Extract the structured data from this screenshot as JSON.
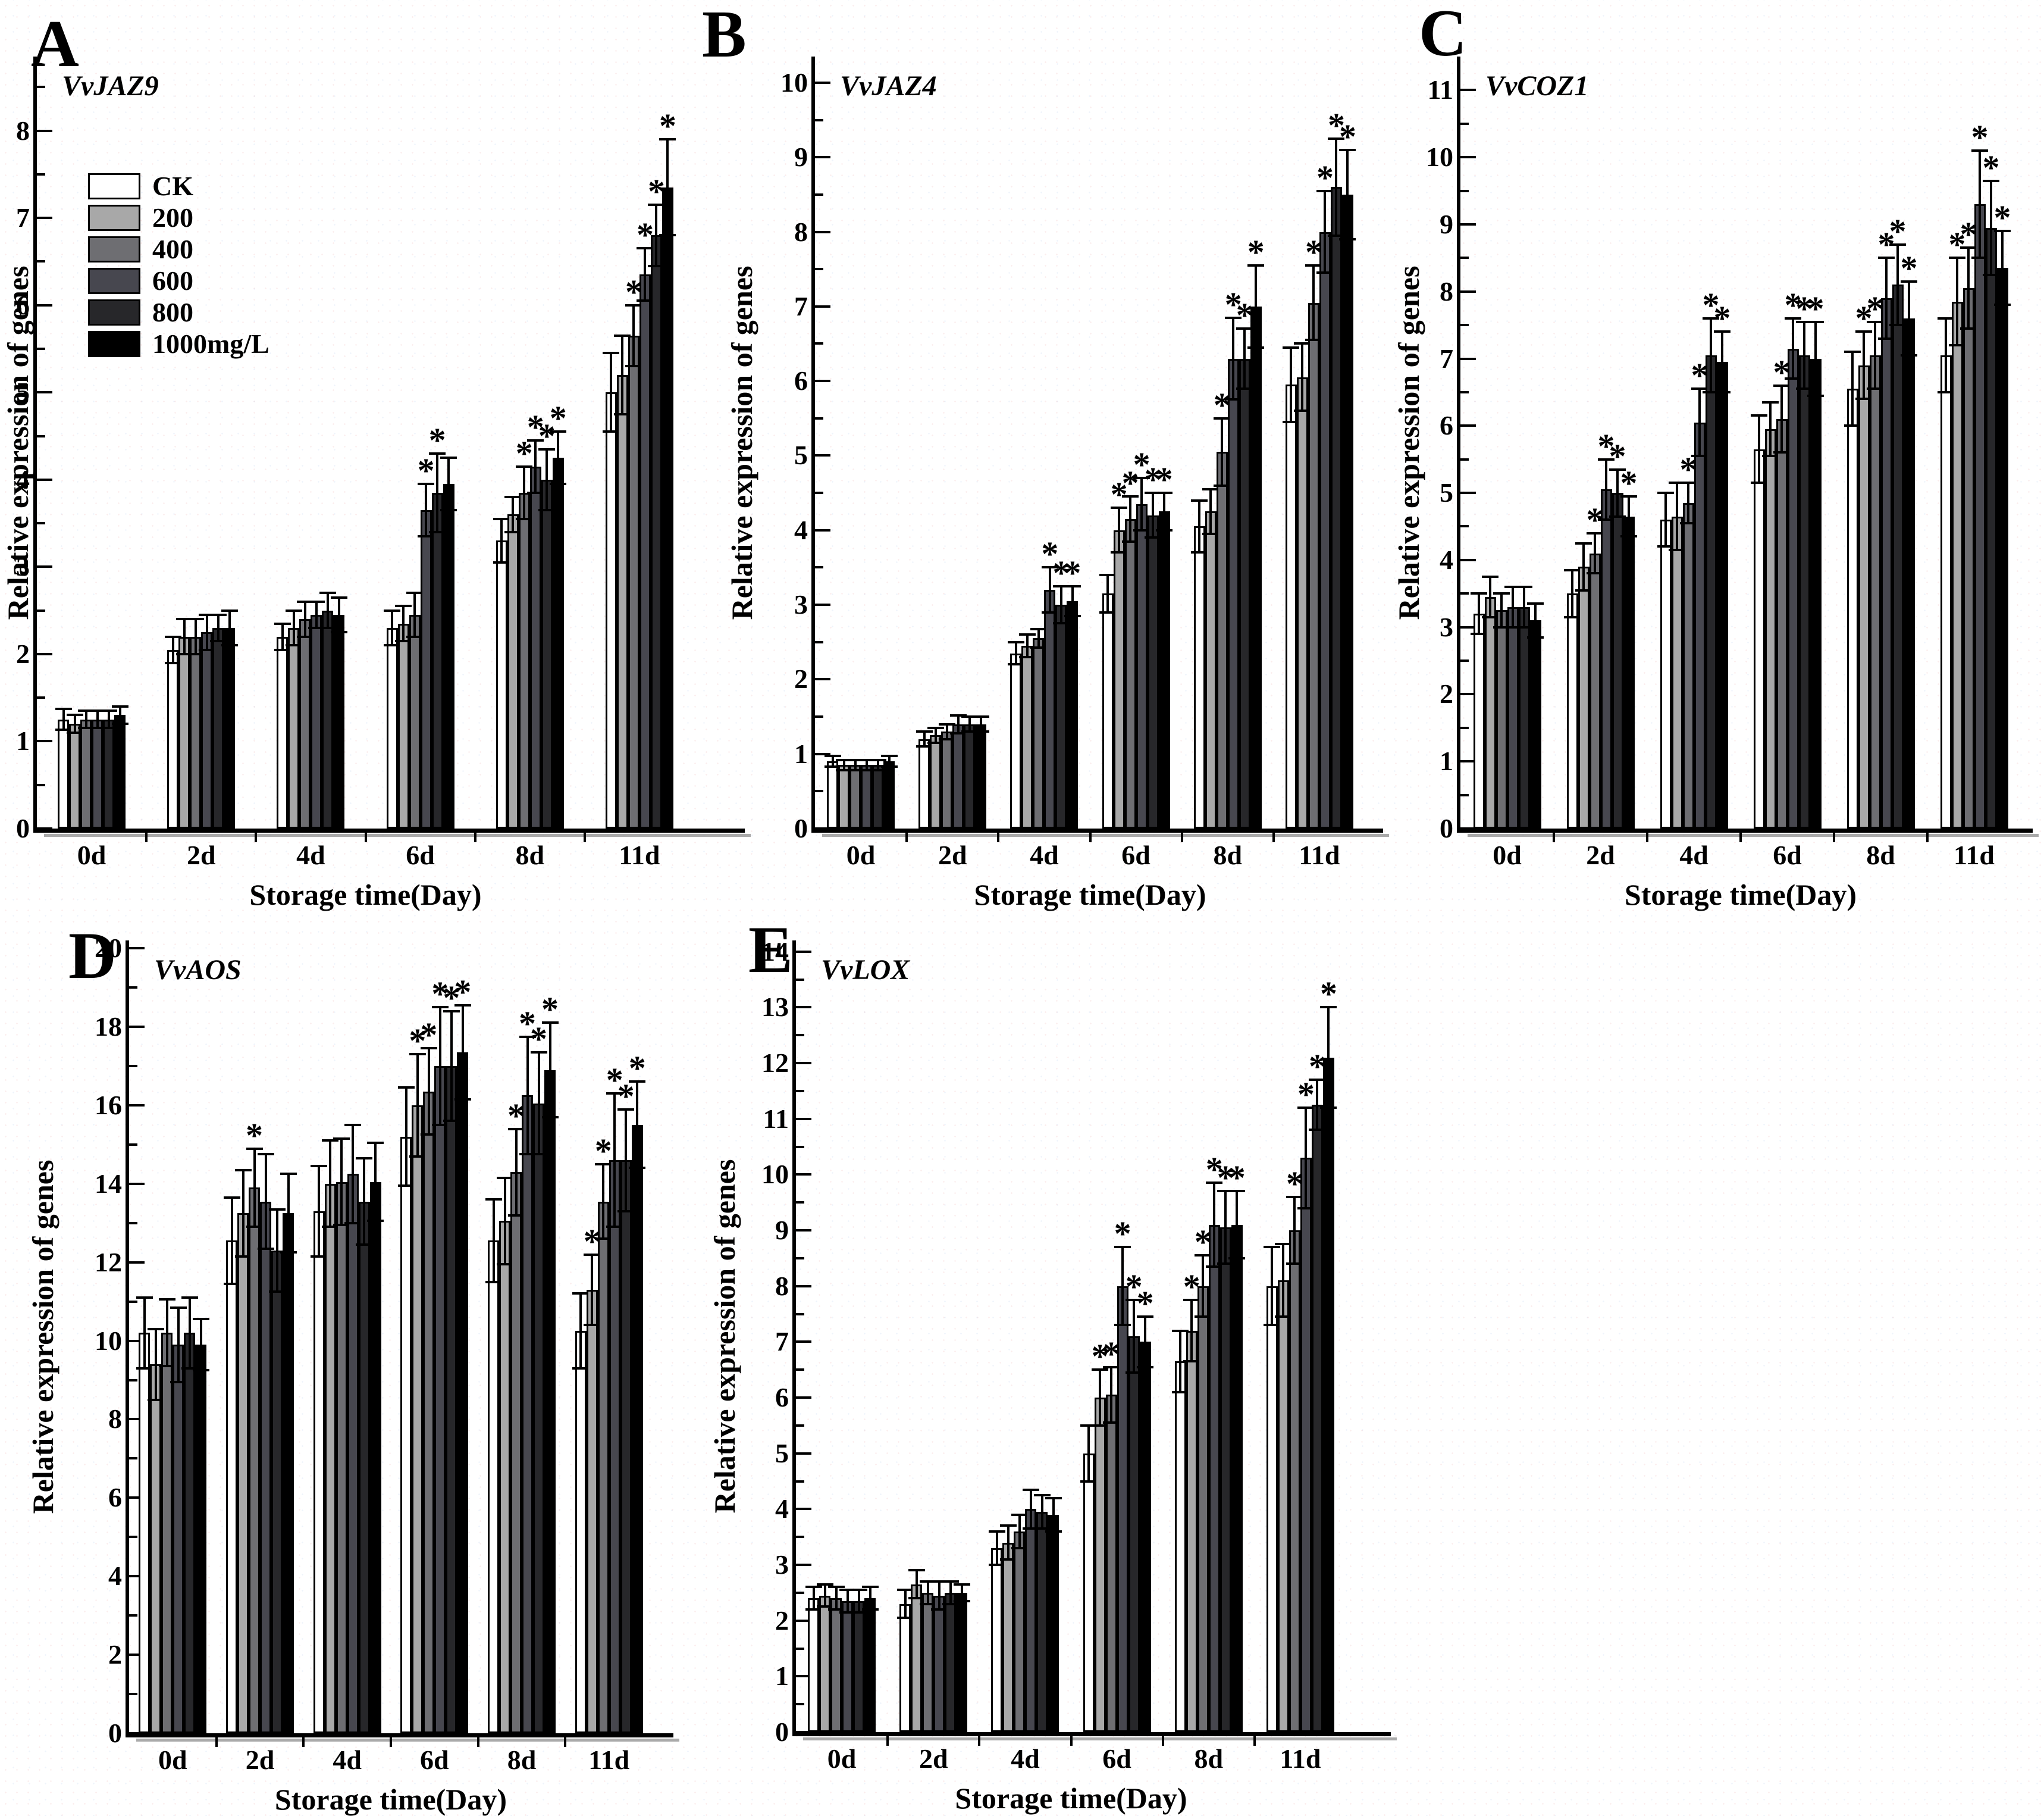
{
  "figure": {
    "panel_letters": [
      "A",
      "B",
      "C",
      "D",
      "E"
    ],
    "x_axis_title": "Storage time(Day)",
    "y_axis_title": "Relative expression of genes",
    "categories": [
      "0d",
      "2d",
      "4d",
      "6d",
      "8d",
      "11d"
    ],
    "significance_symbol": "*",
    "legend": {
      "labels": [
        "CK",
        "200",
        "400",
        "600",
        "800",
        "1000mg/L"
      ],
      "colors": [
        "#ffffff",
        "#a8a8a8",
        "#6e6e72",
        "#47474f",
        "#27272a",
        "#000000"
      ]
    }
  },
  "chart_data": [
    {
      "type": "bar",
      "panel": "A",
      "title": "VvJAZ9",
      "xlabel": "Storage time(Day)",
      "ylabel": "Relative expression of genes",
      "categories": [
        "0d",
        "2d",
        "4d",
        "6d",
        "8d",
        "11d"
      ],
      "ylim": [
        0,
        8
      ],
      "ytick_step": 1,
      "legend_position": "upper-left-inside",
      "grid": false,
      "series": [
        {
          "name": "CK",
          "color": "#ffffff",
          "values": [
            1.25,
            2.05,
            2.2,
            2.3,
            3.3,
            5.0
          ],
          "errors": [
            0.12,
            0.15,
            0.15,
            0.2,
            0.25,
            0.45
          ],
          "stars": [
            0,
            0,
            0,
            0,
            0,
            0
          ]
        },
        {
          "name": "200",
          "color": "#a8a8a8",
          "values": [
            1.2,
            2.2,
            2.3,
            2.35,
            3.6,
            5.2
          ],
          "errors": [
            0.1,
            0.2,
            0.2,
            0.2,
            0.2,
            0.45
          ],
          "stars": [
            0,
            0,
            0,
            0,
            0,
            0
          ]
        },
        {
          "name": "400",
          "color": "#6e6e72",
          "values": [
            1.25,
            2.2,
            2.4,
            2.45,
            3.85,
            5.65
          ],
          "errors": [
            0.1,
            0.2,
            0.2,
            0.25,
            0.3,
            0.35
          ],
          "stars": [
            0,
            0,
            0,
            0,
            1,
            1
          ]
        },
        {
          "name": "600",
          "color": "#47474f",
          "values": [
            1.25,
            2.25,
            2.45,
            3.65,
            4.15,
            6.35
          ],
          "errors": [
            0.1,
            0.2,
            0.15,
            0.3,
            0.3,
            0.3
          ],
          "stars": [
            0,
            0,
            0,
            1,
            1,
            1
          ]
        },
        {
          "name": "800",
          "color": "#27272a",
          "values": [
            1.25,
            2.3,
            2.5,
            3.85,
            4.0,
            6.8
          ],
          "errors": [
            0.1,
            0.15,
            0.2,
            0.45,
            0.35,
            0.35
          ],
          "stars": [
            0,
            0,
            0,
            1,
            1,
            1
          ]
        },
        {
          "name": "1000mg/L",
          "color": "#000000",
          "values": [
            1.3,
            2.3,
            2.45,
            3.95,
            4.25,
            7.35
          ],
          "errors": [
            0.1,
            0.2,
            0.2,
            0.3,
            0.3,
            0.55
          ],
          "stars": [
            0,
            0,
            0,
            0,
            1,
            1
          ]
        }
      ]
    },
    {
      "type": "bar",
      "panel": "B",
      "title": "VvJAZ4",
      "xlabel": "Storage time(Day)",
      "ylabel": "Relative expression of genes",
      "categories": [
        "0d",
        "2d",
        "4d",
        "6d",
        "8d",
        "11d"
      ],
      "ylim": [
        0,
        10
      ],
      "ytick_step": 1,
      "grid": false,
      "series": [
        {
          "name": "CK",
          "color": "#ffffff",
          "values": [
            0.9,
            1.2,
            2.35,
            3.15,
            4.05,
            5.95
          ],
          "errors": [
            0.07,
            0.1,
            0.15,
            0.25,
            0.35,
            0.5
          ],
          "stars": [
            0,
            0,
            0,
            0,
            0,
            0
          ]
        },
        {
          "name": "200",
          "color": "#a8a8a8",
          "values": [
            0.85,
            1.25,
            2.45,
            4.0,
            4.25,
            6.05
          ],
          "errors": [
            0.07,
            0.1,
            0.15,
            0.3,
            0.3,
            0.45
          ],
          "stars": [
            0,
            0,
            0,
            1,
            0,
            0
          ]
        },
        {
          "name": "400",
          "color": "#6e6e72",
          "values": [
            0.85,
            1.3,
            2.55,
            4.15,
            5.05,
            7.05
          ],
          "errors": [
            0.07,
            0.1,
            0.12,
            0.3,
            0.45,
            0.5
          ],
          "stars": [
            0,
            0,
            0,
            1,
            1,
            1
          ]
        },
        {
          "name": "600",
          "color": "#47474f",
          "values": [
            0.85,
            1.4,
            3.2,
            4.35,
            6.3,
            8.0
          ],
          "errors": [
            0.07,
            0.12,
            0.3,
            0.35,
            0.55,
            0.55
          ],
          "stars": [
            0,
            0,
            1,
            1,
            1,
            1
          ]
        },
        {
          "name": "800",
          "color": "#27272a",
          "values": [
            0.85,
            1.4,
            3.0,
            4.2,
            6.3,
            8.6
          ],
          "errors": [
            0.07,
            0.1,
            0.25,
            0.3,
            0.4,
            0.65
          ],
          "stars": [
            0,
            0,
            1,
            1,
            1,
            1
          ]
        },
        {
          "name": "1000mg/L",
          "color": "#000000",
          "values": [
            0.9,
            1.4,
            3.05,
            4.25,
            7.0,
            8.5
          ],
          "errors": [
            0.07,
            0.1,
            0.2,
            0.25,
            0.55,
            0.6
          ],
          "stars": [
            0,
            0,
            1,
            1,
            1,
            1
          ]
        }
      ]
    },
    {
      "type": "bar",
      "panel": "C",
      "title": "VvCOZ1",
      "xlabel": "Storage time(Day)",
      "ylabel": "Relative expression of genes",
      "categories": [
        "0d",
        "2d",
        "4d",
        "6d",
        "8d",
        "11d"
      ],
      "ylim": [
        0,
        11
      ],
      "ytick_step": 1,
      "grid": false,
      "series": [
        {
          "name": "CK",
          "color": "#ffffff",
          "values": [
            3.2,
            3.5,
            4.6,
            5.65,
            6.55,
            7.05
          ],
          "errors": [
            0.3,
            0.35,
            0.4,
            0.5,
            0.55,
            0.55
          ],
          "stars": [
            0,
            0,
            0,
            0,
            0,
            0
          ]
        },
        {
          "name": "200",
          "color": "#a8a8a8",
          "values": [
            3.45,
            3.9,
            4.65,
            5.95,
            6.9,
            7.85
          ],
          "errors": [
            0.3,
            0.35,
            0.5,
            0.4,
            0.5,
            0.65
          ],
          "stars": [
            0,
            0,
            0,
            0,
            1,
            1
          ]
        },
        {
          "name": "400",
          "color": "#6e6e72",
          "values": [
            3.25,
            4.1,
            4.85,
            6.1,
            7.05,
            8.05
          ],
          "errors": [
            0.25,
            0.3,
            0.3,
            0.5,
            0.5,
            0.6
          ],
          "stars": [
            0,
            1,
            1,
            1,
            1,
            1
          ]
        },
        {
          "name": "600",
          "color": "#47474f",
          "values": [
            3.3,
            5.05,
            6.05,
            7.15,
            7.9,
            9.3
          ],
          "errors": [
            0.3,
            0.45,
            0.5,
            0.45,
            0.6,
            0.8
          ],
          "stars": [
            0,
            1,
            1,
            1,
            1,
            1
          ]
        },
        {
          "name": "800",
          "color": "#27272a",
          "values": [
            3.3,
            5.0,
            7.05,
            7.05,
            8.1,
            8.95
          ],
          "errors": [
            0.3,
            0.35,
            0.55,
            0.5,
            0.6,
            0.7
          ],
          "stars": [
            0,
            1,
            1,
            1,
            1,
            1
          ]
        },
        {
          "name": "1000mg/L",
          "color": "#000000",
          "values": [
            3.1,
            4.65,
            6.95,
            7.0,
            7.6,
            8.35
          ],
          "errors": [
            0.25,
            0.3,
            0.45,
            0.55,
            0.55,
            0.55
          ],
          "stars": [
            0,
            1,
            1,
            1,
            1,
            1
          ]
        }
      ]
    },
    {
      "type": "bar",
      "panel": "D",
      "title": "VvAOS",
      "xlabel": "Storage time(Day)",
      "ylabel": "Relative expression of genes",
      "categories": [
        "0d",
        "2d",
        "4d",
        "6d",
        "8d",
        "11d"
      ],
      "ylim": [
        0,
        20
      ],
      "ytick_step": 2,
      "grid": false,
      "series": [
        {
          "name": "CK",
          "color": "#ffffff",
          "values": [
            10.2,
            12.55,
            13.3,
            15.2,
            12.55,
            10.25
          ],
          "errors": [
            0.9,
            1.1,
            1.15,
            1.25,
            1.05,
            0.95
          ],
          "stars": [
            0,
            0,
            0,
            0,
            0,
            0
          ]
        },
        {
          "name": "200",
          "color": "#a8a8a8",
          "values": [
            9.4,
            13.25,
            14.0,
            16.0,
            13.05,
            11.3
          ],
          "errors": [
            0.9,
            1.1,
            1.1,
            1.3,
            1.1,
            0.9
          ],
          "stars": [
            0,
            0,
            0,
            1,
            0,
            1
          ]
        },
        {
          "name": "400",
          "color": "#6e6e72",
          "values": [
            10.2,
            13.9,
            14.05,
            16.35,
            14.3,
            13.55
          ],
          "errors": [
            0.85,
            1.0,
            1.1,
            1.1,
            1.1,
            0.95
          ],
          "stars": [
            0,
            1,
            0,
            1,
            1,
            1
          ]
        },
        {
          "name": "600",
          "color": "#47474f",
          "values": [
            9.9,
            13.55,
            14.25,
            17.0,
            16.25,
            14.6
          ],
          "errors": [
            0.95,
            1.2,
            1.25,
            1.5,
            1.5,
            1.7
          ],
          "stars": [
            0,
            0,
            0,
            1,
            1,
            1
          ]
        },
        {
          "name": "800",
          "color": "#27272a",
          "values": [
            10.2,
            12.3,
            13.55,
            17.0,
            16.05,
            14.6
          ],
          "errors": [
            0.9,
            1.05,
            1.1,
            1.4,
            1.3,
            1.3
          ],
          "stars": [
            0,
            0,
            0,
            1,
            1,
            1
          ]
        },
        {
          "name": "1000mg/L",
          "color": "#000000",
          "values": [
            9.9,
            13.25,
            14.05,
            17.35,
            16.9,
            15.5
          ],
          "errors": [
            0.65,
            1.0,
            1.0,
            1.2,
            1.2,
            1.1
          ],
          "stars": [
            0,
            0,
            0,
            1,
            1,
            1
          ]
        }
      ]
    },
    {
      "type": "bar",
      "panel": "E",
      "title": "VvLOX",
      "xlabel": "Storage time(Day)",
      "ylabel": "Relative expression of genes",
      "categories": [
        "0d",
        "2d",
        "4d",
        "6d",
        "8d",
        "11d"
      ],
      "ylim": [
        0,
        14
      ],
      "ytick_step": 1,
      "grid": false,
      "series": [
        {
          "name": "CK",
          "color": "#ffffff",
          "values": [
            2.4,
            2.3,
            3.3,
            5.0,
            6.65,
            8.0
          ],
          "errors": [
            0.2,
            0.25,
            0.3,
            0.5,
            0.55,
            0.7
          ],
          "stars": [
            0,
            0,
            0,
            0,
            0,
            0
          ]
        },
        {
          "name": "200",
          "color": "#a8a8a8",
          "values": [
            2.45,
            2.65,
            3.4,
            6.0,
            7.2,
            8.1
          ],
          "errors": [
            0.2,
            0.25,
            0.3,
            0.5,
            0.55,
            0.65
          ],
          "stars": [
            0,
            0,
            0,
            1,
            1,
            0
          ]
        },
        {
          "name": "400",
          "color": "#6e6e72",
          "values": [
            2.4,
            2.5,
            3.6,
            6.05,
            8.0,
            9.0
          ],
          "errors": [
            0.2,
            0.2,
            0.3,
            0.5,
            0.55,
            0.6
          ],
          "stars": [
            0,
            0,
            0,
            1,
            1,
            1
          ]
        },
        {
          "name": "600",
          "color": "#47474f",
          "values": [
            2.35,
            2.45,
            4.0,
            8.0,
            9.1,
            10.3
          ],
          "errors": [
            0.2,
            0.25,
            0.35,
            0.7,
            0.75,
            0.9
          ],
          "stars": [
            0,
            0,
            0,
            1,
            1,
            1
          ]
        },
        {
          "name": "800",
          "color": "#27272a",
          "values": [
            2.35,
            2.5,
            3.95,
            7.1,
            9.05,
            11.25
          ],
          "errors": [
            0.2,
            0.2,
            0.3,
            0.65,
            0.65,
            0.45
          ],
          "stars": [
            0,
            0,
            0,
            1,
            1,
            1
          ]
        },
        {
          "name": "1000mg/L",
          "color": "#000000",
          "values": [
            2.4,
            2.5,
            3.9,
            7.0,
            9.1,
            12.1
          ],
          "errors": [
            0.2,
            0.15,
            0.3,
            0.45,
            0.6,
            0.9
          ],
          "stars": [
            0,
            0,
            0,
            1,
            1,
            1
          ]
        }
      ]
    }
  ]
}
